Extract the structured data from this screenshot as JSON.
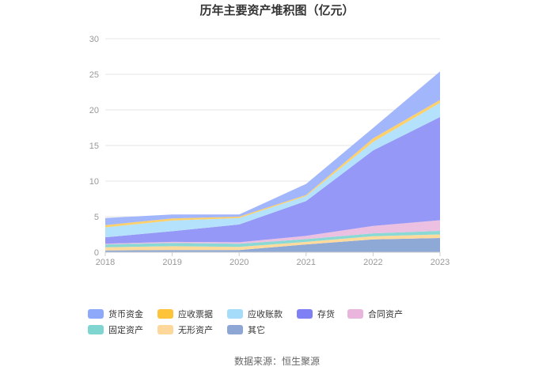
{
  "chart_data": {
    "type": "area",
    "stacked": true,
    "title": "历年主要资产堆积图（亿元）",
    "x": [
      "2018",
      "2019",
      "2020",
      "2021",
      "2022",
      "2023"
    ],
    "ylim": [
      0,
      30
    ],
    "yticks": [
      0,
      5,
      10,
      15,
      20,
      25,
      30
    ],
    "grid": true,
    "legend_position": "bottom-left",
    "series": [
      {
        "name": "其它",
        "color": "#8fa9d6",
        "values": [
          0.25,
          0.3,
          0.3,
          1.1,
          1.8,
          2.0
        ]
      },
      {
        "name": "无形资产",
        "color": "#fedb9c",
        "values": [
          0.45,
          0.55,
          0.45,
          0.35,
          0.45,
          0.5
        ]
      },
      {
        "name": "固定资产",
        "color": "#8bd9d5",
        "values": [
          0.4,
          0.45,
          0.45,
          0.4,
          0.4,
          0.5
        ]
      },
      {
        "name": "合同资产",
        "color": "#ecc0e1",
        "values": [
          0.1,
          0.15,
          0.2,
          0.45,
          1.05,
          1.5
        ]
      },
      {
        "name": "存货",
        "color": "#9698f7",
        "values": [
          0.9,
          1.5,
          2.5,
          4.9,
          10.6,
          14.5
        ]
      },
      {
        "name": "应收账款",
        "color": "#b4e1fb",
        "values": [
          1.4,
          1.5,
          0.9,
          0.7,
          1.2,
          2.0
        ]
      },
      {
        "name": "应收票据",
        "color": "#fdd06a",
        "values": [
          0.3,
          0.3,
          0.2,
          0.15,
          0.5,
          0.4
        ]
      },
      {
        "name": "货币资金",
        "color": "#a2b6fb",
        "values": [
          1.0,
          0.55,
          0.3,
          1.55,
          1.45,
          4.0
        ]
      }
    ],
    "legend": [
      {
        "name": "货币资金",
        "color": "#8ea9f9"
      },
      {
        "name": "应收票据",
        "color": "#fdc43a"
      },
      {
        "name": "应收账款",
        "color": "#a5dcf9"
      },
      {
        "name": "存货",
        "color": "#7e80f4"
      },
      {
        "name": "合同资产",
        "color": "#e9b5dc"
      },
      {
        "name": "固定资产",
        "color": "#7fd5d0"
      },
      {
        "name": "无形资产",
        "color": "#fdd89a"
      },
      {
        "name": "其它",
        "color": "#8da6d4"
      }
    ]
  },
  "source_text": "数据来源：恒生聚源"
}
